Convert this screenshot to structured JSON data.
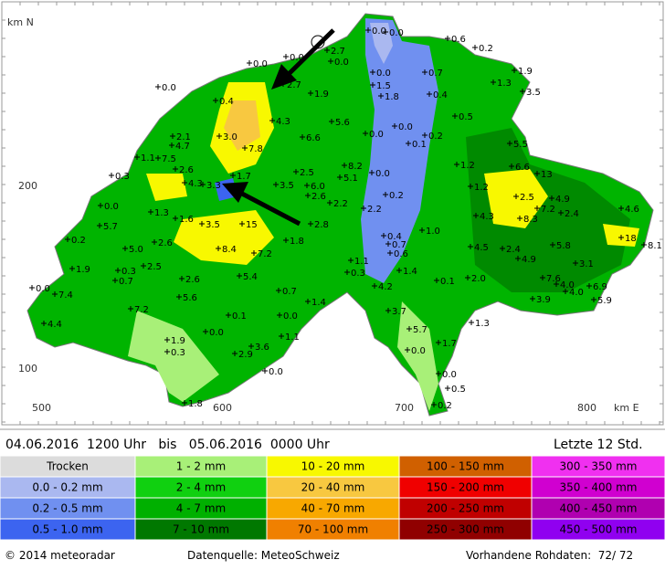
{
  "map": {
    "axis_labels": {
      "y_unit": "km N",
      "y200": "200",
      "y100": "100",
      "x500": "500",
      "x600": "600",
      "x700": "700",
      "x800": "800",
      "x_unit": "km E"
    },
    "stations": [
      "0.0",
      "0.0",
      "0.6",
      "0.2",
      "2.7",
      "0.0",
      "0.0",
      "0.0",
      "1.9",
      "0.0",
      "0.7",
      "0.0",
      "2.7",
      "1.5",
      "1.3",
      "3.5",
      "0.4",
      "1.9",
      "1.8",
      "0.4",
      "4.3",
      "5.6",
      "0.5",
      "3.0",
      "0.0",
      "0.0",
      "0.2",
      "2.1",
      "4.7",
      "6.6",
      "0.1",
      "5.5",
      "7.8",
      "1.1",
      "7.5",
      "2.6",
      "2.5",
      "8.2",
      "0.0",
      "1.2",
      "6.6",
      "0.3",
      "1.7",
      "5.1",
      "13",
      "4.3",
      "3.3",
      "3.5",
      "6.0",
      "2.6",
      "0.2",
      "1.2",
      "0.0",
      "2.5",
      "4.9",
      "2.2",
      "2.2",
      "7.2",
      "2.4",
      "1.3",
      "4.3",
      "8.3",
      "4.6",
      "5.7",
      "1.6",
      "3.5",
      "15",
      "2.8",
      "1.0",
      "0.4",
      "0.7",
      "0.2",
      "2.6",
      "1.8",
      "18",
      "8.1",
      "5.0",
      "8.4",
      "7.2",
      "0.6",
      "4.5",
      "2.4",
      "5.8",
      "4.9",
      "3.1",
      "1.1",
      "1.4",
      "1.9",
      "0.3",
      "2.5",
      "0.3",
      "5.4",
      "2.0",
      "2.6",
      "0.7",
      "0.1",
      "7.6",
      "4.0",
      "4.0",
      "6.9",
      "0.0",
      "7.4",
      "0.7",
      "4.2",
      "5.6",
      "1.4",
      "3.9",
      "5.9",
      "7.2",
      "3.7",
      "0.1",
      "0.0",
      "4.4",
      "1.3",
      "0.0",
      "5.7",
      "1.1",
      "1.9",
      "1.7",
      "3.6",
      "0.3",
      "0.0",
      "2.9",
      "0.0",
      "0.0",
      "0.5",
      "0.2",
      "1.8"
    ]
  },
  "header": {
    "period": "04.06.2016  1200 Uhr   bis   05.06.2016  0000 Uhr",
    "window": "Letzte 12 Std."
  },
  "legend": [
    {
      "label": "Trocken",
      "color": "#dcdcdc"
    },
    {
      "label": "0.0 - 0.2 mm",
      "color": "#aab8f0"
    },
    {
      "label": "0.2 - 0.5 mm",
      "color": "#7090f0"
    },
    {
      "label": "0.5 - 1.0 mm",
      "color": "#3c64f0"
    },
    {
      "label": "1 - 2 mm",
      "color": "#a8f078"
    },
    {
      "label": "2 - 4 mm",
      "color": "#10d010"
    },
    {
      "label": "4 - 7 mm",
      "color": "#00b000"
    },
    {
      "label": "7 - 10 mm",
      "color": "#007800"
    },
    {
      "label": "10 - 20 mm",
      "color": "#f8f800"
    },
    {
      "label": "20 - 40 mm",
      "color": "#f8c840"
    },
    {
      "label": "40 - 70 mm",
      "color": "#f8a800"
    },
    {
      "label": "70 - 100 mm",
      "color": "#f08000"
    },
    {
      "label": "100 - 150 mm",
      "color": "#d06000"
    },
    {
      "label": "150 - 200 mm",
      "color": "#f00000"
    },
    {
      "label": "200 - 250 mm",
      "color": "#c00000"
    },
    {
      "label": "250 - 300 mm",
      "color": "#900000"
    },
    {
      "label": "300 - 350 mm",
      "color": "#f030f0"
    },
    {
      "label": "350 - 400 mm",
      "color": "#d000d0"
    },
    {
      "label": "400 - 450 mm",
      "color": "#b000b0"
    },
    {
      "label": "450 - 500 mm",
      "color": "#9000f0"
    }
  ],
  "footer": {
    "copyright": "© 2014 meteoradar",
    "source": "Datenquelle: MeteoSchweiz",
    "raw": "Vorhandene Rohdaten:  72/ 72"
  }
}
